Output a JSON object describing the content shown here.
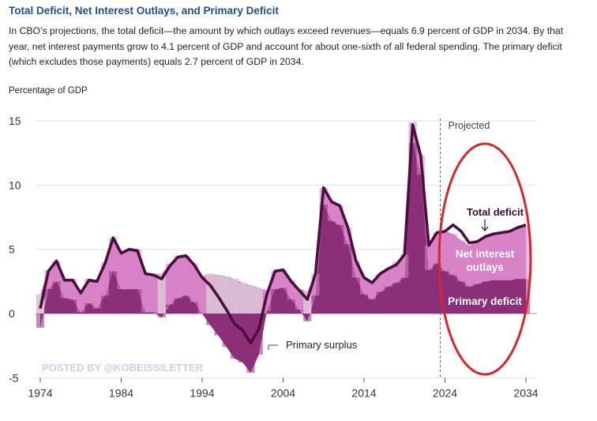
{
  "header": {
    "title": "Total Deficit, Net Interest Outlays, and Primary Deficit",
    "description": "In CBO’s projections, the total deficit—the amount by which outlays exceed revenues—equals 6.9 percent of GDP in 2034. By that year, net interest payments grow to 4.1 percent of GDP and account for about one-sixth of all federal spending. The primary deficit (which excludes those payments) equals 2.7 percent of GDP in 2034."
  },
  "watermark": "POSTED BY @KOBEISSILETTER",
  "colors": {
    "primary": "#8a2f78",
    "interest": "#d883c8",
    "total_line": "#4a0f3b",
    "highlight_ellipse": "#d9262c",
    "watermark": "#c8d4ea",
    "negative_interest": "#d9c2d4"
  },
  "chart_data": {
    "type": "area",
    "ylabel": "Percentage of GDP",
    "ylim": [
      -5,
      15
    ],
    "yticks": [
      "15",
      "10",
      "5",
      "0",
      "-5"
    ],
    "xticks": [
      "1974",
      "1984",
      "1994",
      "2004",
      "2014",
      "2024",
      "2034"
    ],
    "projection_start": 2024,
    "projection_label": "Projected",
    "annotations": {
      "total_deficit": "Total deficit",
      "net_interest_line1": "Net interest",
      "net_interest_line2": "outlays",
      "primary_deficit": "Primary deficit",
      "primary_surplus": "Primary surplus"
    },
    "years": [
      1974,
      1975,
      1976,
      1977,
      1978,
      1979,
      1980,
      1981,
      1982,
      1983,
      1984,
      1985,
      1986,
      1987,
      1988,
      1989,
      1990,
      1991,
      1992,
      1993,
      1994,
      1995,
      1996,
      1997,
      1998,
      1999,
      2000,
      2001,
      2002,
      2003,
      2004,
      2005,
      2006,
      2007,
      2008,
      2009,
      2010,
      2011,
      2012,
      2013,
      2014,
      2015,
      2016,
      2017,
      2018,
      2019,
      2020,
      2021,
      2022,
      2023,
      2024,
      2025,
      2026,
      2027,
      2028,
      2029,
      2030,
      2031,
      2032,
      2033,
      2034
    ],
    "series": [
      {
        "name": "Net interest outlays",
        "values": [
          1.5,
          1.5,
          1.6,
          1.5,
          1.6,
          1.7,
          1.9,
          2.2,
          2.6,
          2.6,
          2.9,
          3.1,
          3.1,
          3.0,
          3.0,
          3.1,
          3.2,
          3.3,
          3.1,
          3.0,
          2.9,
          3.1,
          3.0,
          2.9,
          2.7,
          2.4,
          2.2,
          2.0,
          1.6,
          1.4,
          1.4,
          1.5,
          1.6,
          1.7,
          1.7,
          1.3,
          1.5,
          1.5,
          1.3,
          1.3,
          1.3,
          1.3,
          1.4,
          1.4,
          1.6,
          1.8,
          1.6,
          1.5,
          1.9,
          2.4,
          3.1,
          3.2,
          3.2,
          3.2,
          3.3,
          3.4,
          3.6,
          3.7,
          3.8,
          4.0,
          4.1
        ]
      },
      {
        "name": "Primary deficit",
        "values": [
          -1.1,
          1.9,
          2.5,
          1.2,
          1.1,
          0.1,
          0.8,
          0.4,
          1.4,
          3.3,
          1.9,
          1.9,
          1.9,
          0.1,
          0.1,
          -0.3,
          0.7,
          1.2,
          1.4,
          0.9,
          0.0,
          -0.9,
          -1.7,
          -2.6,
          -3.5,
          -3.8,
          -4.6,
          -3.2,
          0.2,
          1.9,
          2.0,
          1.1,
          0.3,
          -0.6,
          1.4,
          8.5,
          7.2,
          6.9,
          5.4,
          2.8,
          1.5,
          1.1,
          1.7,
          2.1,
          2.4,
          2.8,
          13.3,
          10.8,
          3.4,
          3.9,
          3.3,
          3.0,
          2.5,
          2.1,
          2.3,
          2.5,
          2.6,
          2.6,
          2.6,
          2.7,
          2.7
        ]
      },
      {
        "name": "Total deficit",
        "values": [
          0.4,
          3.3,
          4.1,
          2.6,
          2.6,
          1.6,
          2.6,
          2.5,
          3.9,
          5.9,
          4.7,
          5.0,
          4.9,
          3.1,
          3.0,
          2.7,
          3.7,
          4.4,
          4.5,
          3.8,
          2.8,
          2.2,
          1.3,
          0.3,
          -0.8,
          -1.3,
          -2.3,
          -1.2,
          1.5,
          3.3,
          3.4,
          2.5,
          1.8,
          1.1,
          3.1,
          9.8,
          8.7,
          8.4,
          6.7,
          4.1,
          2.8,
          2.4,
          3.1,
          3.5,
          3.8,
          4.6,
          14.7,
          12.3,
          5.3,
          6.3,
          6.4,
          6.9,
          6.4,
          5.5,
          5.6,
          6.0,
          6.2,
          6.3,
          6.4,
          6.7,
          6.9
        ]
      }
    ]
  }
}
